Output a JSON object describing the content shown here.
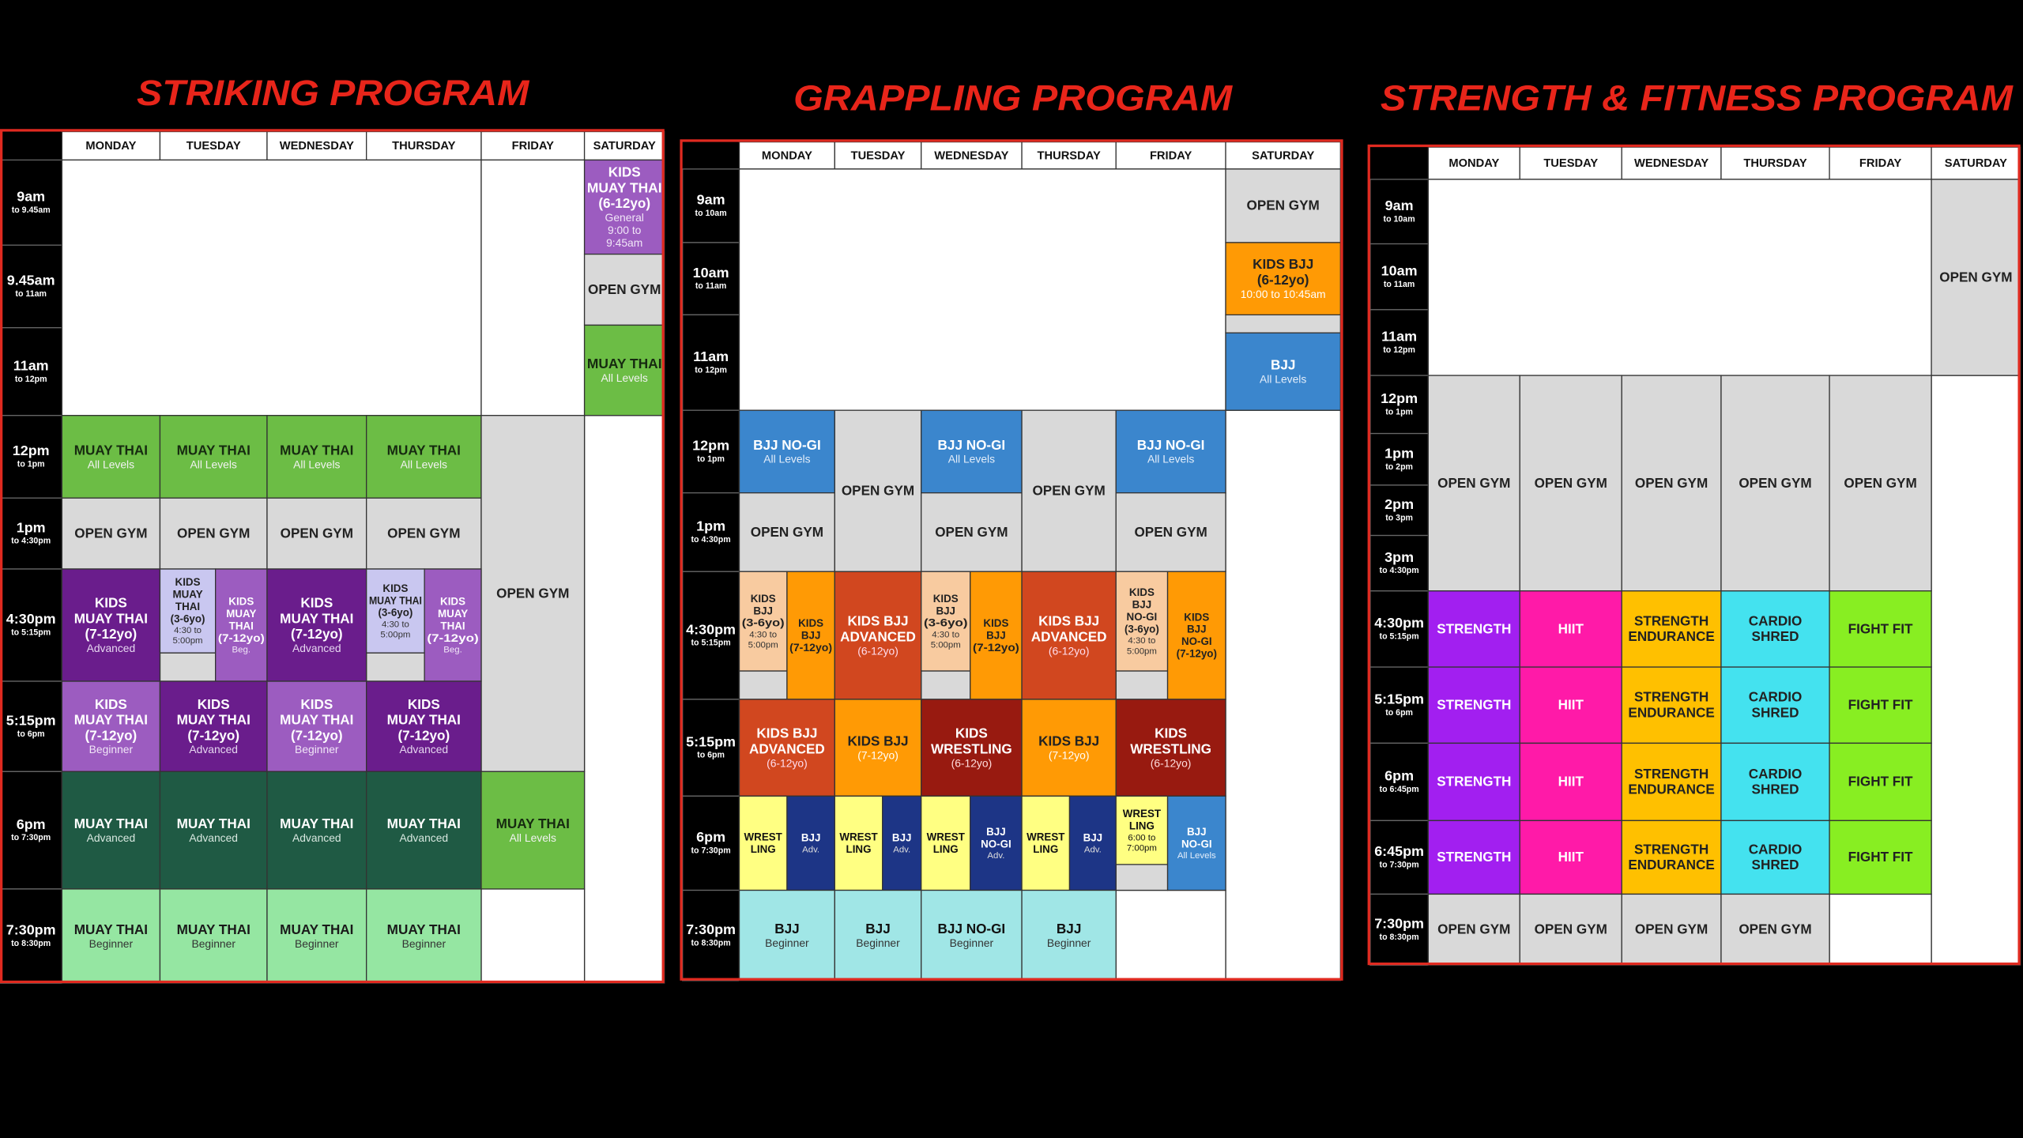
{
  "programs": [
    {
      "title": "STRIKING PROGRAM",
      "days": [
        "MONDAY",
        "TUESDAY",
        "WEDNESDAY",
        "THURSDAY",
        "FRIDAY",
        "SATURDAY"
      ],
      "times": [
        {
          "time": "9am",
          "until": "to 9.45am"
        },
        {
          "time": "9.45am",
          "until": "to 11am"
        },
        {
          "time": "11am",
          "until": "to 12pm"
        },
        {
          "time": "12pm",
          "until": "to 1pm"
        },
        {
          "time": "1pm",
          "until": "to 4:30pm"
        },
        {
          "time": "4:30pm",
          "until": "to 5:15pm"
        },
        {
          "time": "5:15pm",
          "until": "to 6pm"
        },
        {
          "time": "6pm",
          "until": "to 7:30pm"
        },
        {
          "time": "7:30pm",
          "until": "to 8:30pm"
        }
      ],
      "blocks": [
        [
          "KIDS",
          "MUAY THAI",
          "(6-12yo)",
          "General",
          "9:00 to",
          "9:45am"
        ],
        [
          "OPEN GYM"
        ],
        [
          "MUAY THAI",
          "All Levels"
        ],
        [
          "MUAY THAI",
          "All Levels"
        ],
        [
          "MUAY THAI",
          "All Levels"
        ],
        [
          "MUAY THAI",
          "All Levels"
        ],
        [
          "MUAY THAI",
          "All Levels"
        ],
        [
          "OPEN GYM"
        ],
        [
          "OPEN GYM"
        ],
        [
          "OPEN GYM"
        ],
        [
          "OPEN GYM"
        ],
        [
          "OPEN GYM"
        ],
        [
          "KIDS",
          "MUAY THAI",
          "(7-12yo)",
          "Advanced"
        ],
        [
          "KIDS",
          "MUAY",
          "THAI",
          "(3-6yo)",
          "4:30 to",
          "5:00pm"
        ],
        [
          "KIDS",
          "MUAY",
          "THAI",
          "(7-12yo)",
          "Beg."
        ],
        [
          "KIDS",
          "MUAY THAI",
          "(7-12yo)",
          "Advanced"
        ],
        [
          "KIDS",
          "MUAY THAI",
          "(3-6yo)",
          "4:30 to",
          "5:00pm"
        ],
        [
          "KIDS",
          "MUAY",
          "THAI",
          "(7-12yo)",
          "Beg."
        ],
        [
          "KIDS",
          "MUAY THAI",
          "(7-12yo)",
          "Beginner"
        ],
        [
          "KIDS",
          "MUAY THAI",
          "(7-12yo)",
          "Advanced"
        ],
        [
          "KIDS",
          "MUAY THAI",
          "(7-12yo)",
          "Beginner"
        ],
        [
          "KIDS",
          "MUAY THAI",
          "(7-12yo)",
          "Advanced"
        ],
        [
          "MUAY THAI",
          "Advanced"
        ],
        [
          "MUAY THAI",
          "Advanced"
        ],
        [
          "MUAY THAI",
          "Advanced"
        ],
        [
          "MUAY THAI",
          "Advanced"
        ],
        [
          "MUAY THAI",
          "All Levels"
        ],
        [
          "MUAY THAI",
          "Beginner"
        ],
        [
          "MUAY THAI",
          "Beginner"
        ],
        [
          "MUAY THAI",
          "Beginner"
        ],
        [
          "MUAY THAI",
          "Beginner"
        ]
      ]
    },
    {
      "title": "GRAPPLING PROGRAM",
      "days": [
        "MONDAY",
        "TUESDAY",
        "WEDNESDAY",
        "THURSDAY",
        "FRIDAY",
        "SATURDAY"
      ],
      "times": [
        {
          "time": "9am",
          "until": "to 10am"
        },
        {
          "time": "10am",
          "until": "to 11am"
        },
        {
          "time": "11am",
          "until": "to 12pm"
        },
        {
          "time": "12pm",
          "until": "to 1pm"
        },
        {
          "time": "1pm",
          "until": "to 4:30pm"
        },
        {
          "time": "4:30pm",
          "until": "to 5:15pm"
        },
        {
          "time": "5:15pm",
          "until": "to 6pm"
        },
        {
          "time": "6pm",
          "until": "to 7:30pm"
        },
        {
          "time": "7:30pm",
          "until": "to 8:30pm"
        }
      ],
      "blocks": [
        [
          "OPEN GYM"
        ],
        [
          "KIDS BJJ",
          "(6-12yo)",
          "10:00 to 10:45am"
        ],
        [
          "BJJ",
          "All Levels"
        ],
        [
          "BJJ NO-GI",
          "All Levels"
        ],
        [
          "OPEN GYM"
        ],
        [
          "OPEN GYM"
        ],
        [
          "BJJ NO-GI",
          "All Levels"
        ],
        [
          "OPEN GYM"
        ],
        [
          "OPEN GYM"
        ],
        [
          "BJJ NO-GI",
          "All Levels"
        ],
        [
          "OPEN GYM"
        ],
        [
          "KIDS",
          "BJJ",
          "(3-6yo)",
          "4:30 to",
          "5:00pm"
        ],
        [
          "KIDS",
          "BJJ",
          "(7-12yo)"
        ],
        [
          "KIDS BJJ",
          "ADVANCED",
          "(6-12yo)"
        ],
        [
          "KIDS",
          "BJJ",
          "(3-6yo)",
          "4:30 to",
          "5:00pm"
        ],
        [
          "KIDS",
          "BJJ",
          "(7-12yo)"
        ],
        [
          "KIDS BJJ",
          "ADVANCED",
          "(6-12yo)"
        ],
        [
          "KIDS",
          "BJJ",
          "NO-GI",
          "(3-6yo)",
          "4:30 to",
          "5:00pm"
        ],
        [
          "KIDS",
          "BJJ",
          "NO-GI",
          "(7-12yo)"
        ],
        [
          "KIDS BJJ",
          "ADVANCED",
          "(6-12yo)"
        ],
        [
          "KIDS BJJ",
          "(7-12yo)"
        ],
        [
          "KIDS",
          "WRESTLING",
          "(6-12yo)"
        ],
        [
          "KIDS BJJ",
          "(7-12yo)"
        ],
        [
          "KIDS",
          "WRESTLING",
          "(6-12yo)"
        ],
        [
          "WREST",
          "LING"
        ],
        [
          "BJJ",
          "Adv."
        ],
        [
          "WREST",
          "LING"
        ],
        [
          "BJJ",
          "Adv."
        ],
        [
          "WREST",
          "LING"
        ],
        [
          "BJJ",
          "NO-GI",
          "Adv."
        ],
        [
          "WREST",
          "LING"
        ],
        [
          "BJJ",
          "Adv."
        ],
        [
          "WREST",
          "LING",
          "6:00 to",
          "7:00pm"
        ],
        [
          "BJJ",
          "NO-GI",
          "All Levels"
        ],
        [
          "BJJ",
          "Beginner"
        ],
        [
          "BJJ",
          "Beginner"
        ],
        [
          "BJJ NO-GI",
          "Beginner"
        ],
        [
          "BJJ",
          "Beginner"
        ]
      ]
    },
    {
      "title": "STRENGTH & FITNESS PROGRAM",
      "days": [
        "MONDAY",
        "TUESDAY",
        "WEDNESDAY",
        "THURSDAY",
        "FRIDAY",
        "SATURDAY"
      ],
      "times": [
        {
          "time": "9am",
          "until": "to 10am"
        },
        {
          "time": "10am",
          "until": "to 11am"
        },
        {
          "time": "11am",
          "until": "to 12pm"
        },
        {
          "time": "12pm",
          "until": "to 1pm"
        },
        {
          "time": "1pm",
          "until": "to 2pm"
        },
        {
          "time": "2pm",
          "until": "to 3pm"
        },
        {
          "time": "3pm",
          "until": "to 4:30pm"
        },
        {
          "time": "4:30pm",
          "until": "to 5:15pm"
        },
        {
          "time": "5:15pm",
          "until": "to 6pm"
        },
        {
          "time": "6pm",
          "until": "to 6:45pm"
        },
        {
          "time": "6:45pm",
          "until": "to 7:30pm"
        },
        {
          "time": "7:30pm",
          "until": "to 8:30pm"
        }
      ],
      "blocks": [
        [
          "OPEN GYM"
        ],
        [
          "OPEN GYM"
        ],
        [
          "OPEN GYM"
        ],
        [
          "OPEN GYM"
        ],
        [
          "OPEN GYM"
        ],
        [
          "OPEN GYM"
        ],
        [
          "STRENGTH"
        ],
        [
          "HIIT"
        ],
        [
          "STRENGTH",
          "ENDURANCE"
        ],
        [
          "CARDIO",
          "SHRED"
        ],
        [
          "FIGHT FIT"
        ],
        [
          "STRENGTH"
        ],
        [
          "HIIT"
        ],
        [
          "STRENGTH",
          "ENDURANCE"
        ],
        [
          "CARDIO",
          "SHRED"
        ],
        [
          "FIGHT FIT"
        ],
        [
          "STRENGTH"
        ],
        [
          "HIIT"
        ],
        [
          "STRENGTH",
          "ENDURANCE"
        ],
        [
          "CARDIO",
          "SHRED"
        ],
        [
          "FIGHT FIT"
        ],
        [
          "STRENGTH"
        ],
        [
          "HIIT"
        ],
        [
          "STRENGTH",
          "ENDURANCE"
        ],
        [
          "CARDIO",
          "SHRED"
        ],
        [
          "FIGHT FIT"
        ],
        [
          "OPEN GYM"
        ],
        [
          "OPEN GYM"
        ],
        [
          "OPEN GYM"
        ],
        [
          "OPEN GYM"
        ]
      ]
    }
  ]
}
